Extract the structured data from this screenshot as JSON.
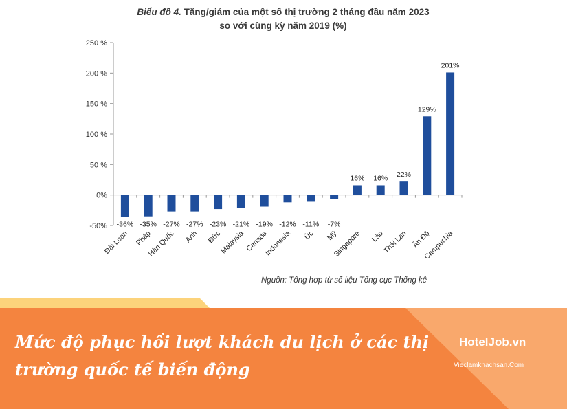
{
  "chart_data": {
    "type": "bar",
    "title_prefix": "Biểu đồ 4.",
    "title_line1": "Tăng/giảm của một số thị trường 2 tháng đầu năm 2023",
    "title_line2": "so với cùng kỳ năm 2019 (%)",
    "categories": [
      "Đài Loan",
      "Pháp",
      "Hàn Quốc",
      "Anh",
      "Đức",
      "Malaysia",
      "Canada",
      "Indonesia",
      "Úc",
      "Mỹ",
      "Singapore",
      "Lào",
      "Thái Lan",
      "Ấn Độ",
      "Campuchia"
    ],
    "values": [
      -36,
      -35,
      -27,
      -27,
      -23,
      -21,
      -19,
      -12,
      -11,
      -7,
      16,
      16,
      22,
      129,
      201
    ],
    "data_labels": [
      "-36%",
      "-35%",
      "-27%",
      "-27%",
      "-23%",
      "-21%",
      "-19%",
      "-12%",
      "-11%",
      "-7%",
      "16%",
      "16%",
      "22%",
      "129%",
      "201%"
    ],
    "ylim": [
      -50,
      250
    ],
    "ticks": [
      -50,
      0,
      50,
      100,
      150,
      200,
      250
    ],
    "tick_labels": [
      "-50%",
      "0%",
      "50 %",
      "100 %",
      "150 %",
      "200 %",
      "250 %"
    ],
    "bar_color": "#1f4e9c",
    "grid": false
  },
  "source": "Nguồn: Tổng hợp từ số liệu Tổng cục Thống kê",
  "banner": {
    "caption": "Mức độ phục hồi lượt khách du lịch ở các thị trường quốc tế biến động",
    "logo": "HotelJob.vn",
    "logo_sub": "Vieclamkhachsan.Com",
    "orange": "#f4843f",
    "light_orange": "#f9a86c",
    "yellow": "#fcd37b"
  }
}
